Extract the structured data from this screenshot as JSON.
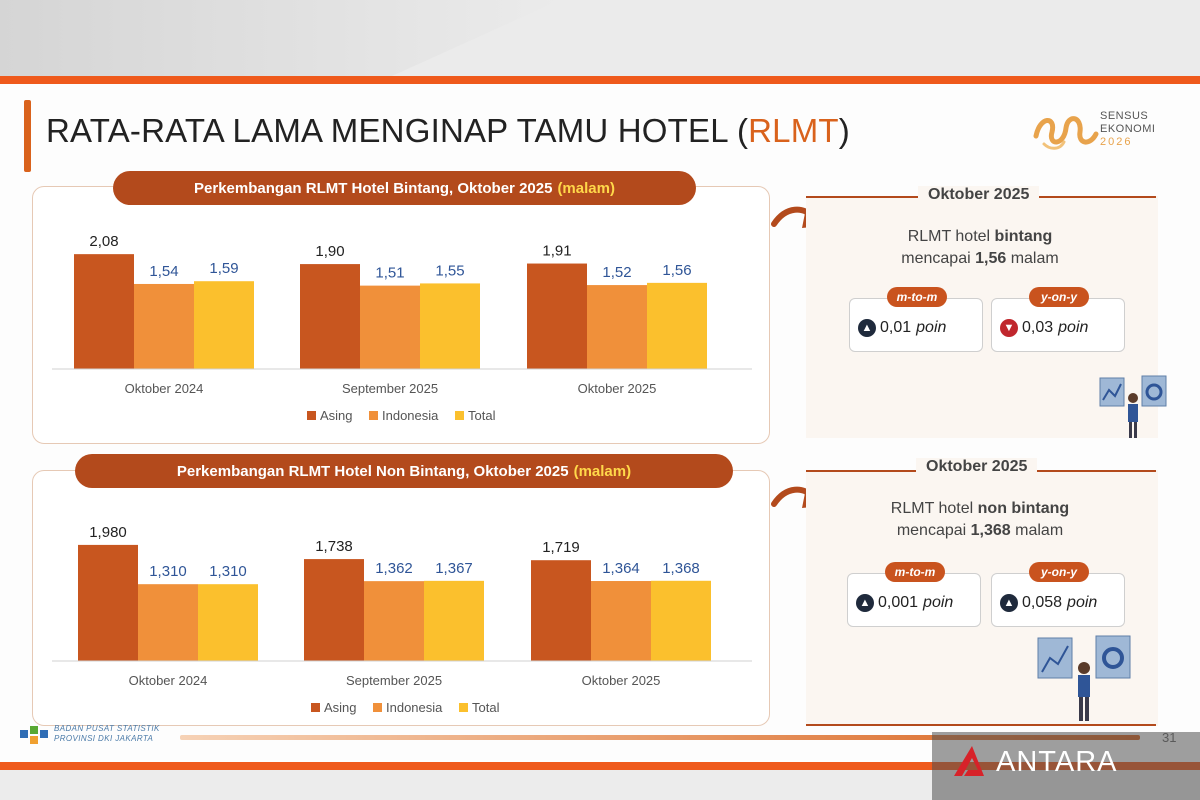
{
  "slide": {
    "title_main": "RATA-RATA LAMA MENGINAP TAMU HOTEL (",
    "title_highlight": "RLMT",
    "title_end": ")",
    "logo": {
      "line1": "SENSUS",
      "line2": "EKONOMI",
      "line3": "2026"
    },
    "page_number": "31",
    "footer_org_line1": "BADAN PUSAT STATISTIK",
    "footer_org_line2": "PROVINSI DKI JAKARTA",
    "watermark": "ANTARA"
  },
  "panels": [
    {
      "pill_text": "Perkembangan RLMT Hotel Bintang, Oktober 2025",
      "pill_unit": "(malam)"
    },
    {
      "pill_text": "Perkembangan RLMT Hotel Non Bintang, Oktober 2025",
      "pill_unit": "(malam)"
    }
  ],
  "info": [
    {
      "heading": "Oktober 2025",
      "line1_pre": "RLMT hotel ",
      "line1_bold": "bintang",
      "line2_pre": "mencapai ",
      "line2_bold": "1,56",
      "line2_post": " malam",
      "mtm_label": "m-to-m",
      "mtm_value": "0,01",
      "mtm_dir": "up",
      "yoy_label": "y-on-y",
      "yoy_value": "0,03",
      "yoy_dir": "down",
      "unit": "poin"
    },
    {
      "heading": "Oktober 2025",
      "line1_pre": "RLMT hotel ",
      "line1_bold": "non bintang",
      "line2_pre": "mencapai ",
      "line2_bold": "1,368",
      "line2_post": " malam",
      "mtm_label": "m-to-m",
      "mtm_value": "0,001",
      "mtm_dir": "up",
      "yoy_label": "y-on-y",
      "yoy_value": "0,058",
      "yoy_dir": "up",
      "unit": "poin"
    }
  ],
  "colors": {
    "asing": "#c8561f",
    "indonesia": "#f0903a",
    "total": "#fbc02d",
    "up_icon": "#1f2a3c",
    "down_icon": "#c0272d",
    "label": "#2f5597"
  },
  "chart_data": [
    {
      "type": "bar",
      "title": "Perkembangan RLMT Hotel Bintang, Oktober 2025 (malam)",
      "categories": [
        "Oktober 2024",
        "September 2025",
        "Oktober 2025"
      ],
      "series": [
        {
          "name": "Asing",
          "values": [
            2.08,
            1.9,
            1.91
          ],
          "labels": [
            "2,08",
            "1,90",
            "1,91"
          ]
        },
        {
          "name": "Indonesia",
          "values": [
            1.54,
            1.51,
            1.52
          ],
          "labels": [
            "1,54",
            "1,51",
            "1,52"
          ]
        },
        {
          "name": "Total",
          "values": [
            1.59,
            1.55,
            1.56
          ],
          "labels": [
            "1,59",
            "1,55",
            "1,56"
          ]
        }
      ],
      "ylim": [
        0,
        2.3
      ],
      "grid": false,
      "legend": "bottom"
    },
    {
      "type": "bar",
      "title": "Perkembangan RLMT Hotel Non Bintang, Oktober 2025 (malam)",
      "categories": [
        "Oktober 2024",
        "September 2025",
        "Oktober 2025"
      ],
      "series": [
        {
          "name": "Asing",
          "values": [
            1.98,
            1.738,
            1.719
          ],
          "labels": [
            "1,980",
            "1,738",
            "1,719"
          ]
        },
        {
          "name": "Indonesia",
          "values": [
            1.31,
            1.362,
            1.364
          ],
          "labels": [
            "1,310",
            "1,362",
            "1,364"
          ]
        },
        {
          "name": "Total",
          "values": [
            1.31,
            1.367,
            1.368
          ],
          "labels": [
            "1,310",
            "1,367",
            "1,368"
          ]
        }
      ],
      "ylim": [
        0,
        2.2
      ],
      "grid": false,
      "legend": "bottom"
    }
  ]
}
